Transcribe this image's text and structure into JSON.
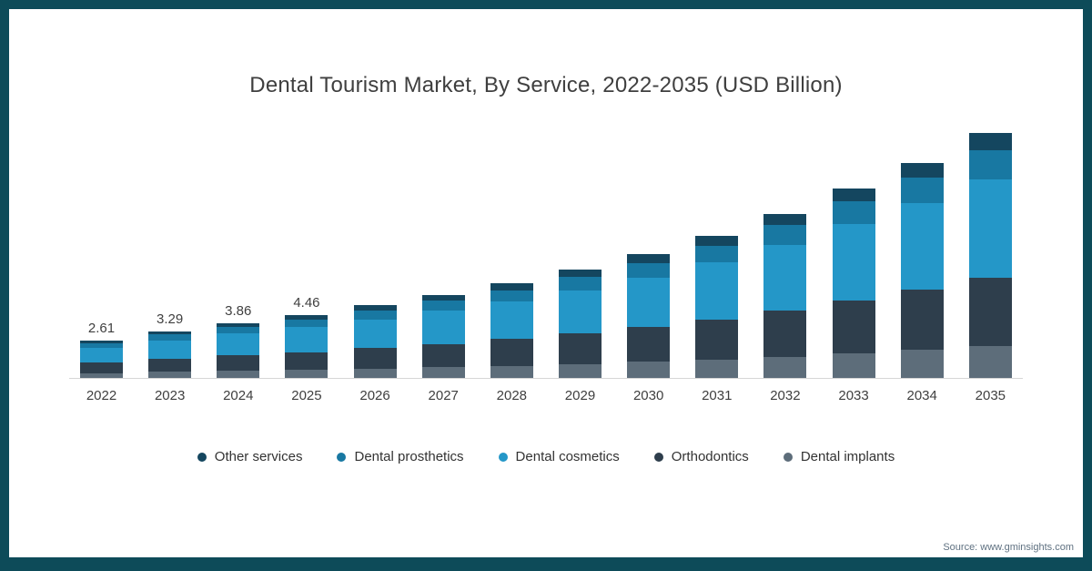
{
  "frame": {
    "border_color": "#0d4b59",
    "background": "#ffffff"
  },
  "title": "Dental Tourism Market, By Service, 2022-2035 (USD Billion)",
  "source": "Source: www.gminsights.com",
  "chart_data": {
    "type": "bar",
    "stacked": true,
    "title": "Dental Tourism Market, By Service, 2022-2035 (USD Billion)",
    "xlabel": "",
    "ylabel": "USD Billion",
    "ylim": [
      0,
      18
    ],
    "grid": false,
    "legend_position": "bottom",
    "categories": [
      "2022",
      "2023",
      "2024",
      "2025",
      "2026",
      "2027",
      "2028",
      "2029",
      "2030",
      "2031",
      "2032",
      "2033",
      "2034",
      "2035"
    ],
    "totals": [
      2.61,
      3.29,
      3.86,
      4.46,
      5.12,
      5.84,
      6.68,
      7.65,
      8.74,
      10.05,
      11.6,
      13.4,
      15.2,
      17.3
    ],
    "value_labels": [
      "2.61",
      "3.29",
      "3.86",
      "4.46",
      "",
      "",
      "",
      "",
      "",
      "",
      "",
      "",
      "",
      ""
    ],
    "series": [
      {
        "name": "Other services",
        "color": "#14465f",
        "values": [
          0.19,
          0.23,
          0.28,
          0.31,
          0.36,
          0.4,
          0.47,
          0.54,
          0.6,
          0.7,
          0.81,
          0.94,
          1.06,
          1.21
        ]
      },
      {
        "name": "Dental prosthetics",
        "color": "#1878a2",
        "values": [
          0.31,
          0.39,
          0.46,
          0.54,
          0.61,
          0.7,
          0.8,
          0.92,
          1.05,
          1.21,
          1.39,
          1.61,
          1.82,
          2.08
        ]
      },
      {
        "name": "Dental cosmetics",
        "color": "#2497c8",
        "values": [
          1.04,
          1.32,
          1.54,
          1.78,
          2.05,
          2.34,
          2.67,
          3.06,
          3.5,
          4.02,
          4.64,
          5.36,
          6.08,
          6.92
        ]
      },
      {
        "name": "Orthodontics",
        "color": "#2e3e4c",
        "values": [
          0.73,
          0.92,
          1.08,
          1.25,
          1.43,
          1.64,
          1.87,
          2.14,
          2.45,
          2.81,
          3.25,
          3.75,
          4.26,
          4.84
        ]
      },
      {
        "name": "Dental implants",
        "color": "#5d6d7a",
        "values": [
          0.34,
          0.43,
          0.5,
          0.58,
          0.67,
          0.76,
          0.87,
          0.99,
          1.14,
          1.31,
          1.51,
          1.74,
          1.98,
          2.25
        ]
      }
    ]
  }
}
